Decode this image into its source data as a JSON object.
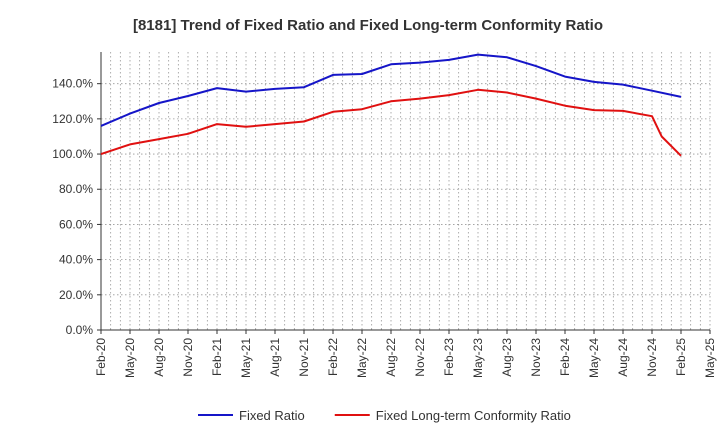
{
  "chart_data": {
    "type": "line",
    "title": "[8181]  Trend of Fixed Ratio and Fixed Long-term Conformity Ratio",
    "xlabel": "",
    "ylabel": "",
    "x": [
      "Feb-20",
      "May-20",
      "Aug-20",
      "Nov-20",
      "Feb-21",
      "May-21",
      "Aug-21",
      "Nov-21",
      "Feb-22",
      "May-22",
      "Aug-22",
      "Nov-22",
      "Feb-23",
      "May-23",
      "Aug-23",
      "Nov-23",
      "Feb-24",
      "May-24",
      "Aug-24",
      "Nov-24",
      "Feb-25",
      "May-25"
    ],
    "x_tick_labels": [
      "Feb-20",
      "May-20",
      "Aug-20",
      "Nov-20",
      "Feb-21",
      "May-21",
      "Aug-21",
      "Nov-21",
      "Feb-22",
      "May-22",
      "Aug-22",
      "Nov-22",
      "Feb-23",
      "May-23",
      "Aug-23",
      "Nov-23",
      "Feb-24",
      "May-24",
      "Aug-24",
      "Nov-24",
      "Feb-25",
      "May-25"
    ],
    "y_tick_labels": [
      "0.0%",
      "20.0%",
      "40.0%",
      "60.0%",
      "80.0%",
      "100.0%",
      "120.0%",
      "140.0%"
    ],
    "y_ticks": [
      0,
      20,
      40,
      60,
      80,
      100,
      120,
      140
    ],
    "ylim": [
      0,
      158
    ],
    "grid": true,
    "legend_position": "bottom",
    "series": [
      {
        "name": "Fixed Ratio",
        "color": "#1515c8",
        "points": [
          {
            "x": "Feb-20",
            "y": 116
          },
          {
            "x": "May-20",
            "y": 123
          },
          {
            "x": "Aug-20",
            "y": 129
          },
          {
            "x": "Nov-20",
            "y": 133
          },
          {
            "x": "Feb-21",
            "y": 137.5
          },
          {
            "x": "May-21",
            "y": 135.5
          },
          {
            "x": "Aug-21",
            "y": 137
          },
          {
            "x": "Nov-21",
            "y": 138
          },
          {
            "x": "Feb-22",
            "y": 145
          },
          {
            "x": "May-22",
            "y": 145.5
          },
          {
            "x": "Aug-22",
            "y": 151
          },
          {
            "x": "Nov-22",
            "y": 152
          },
          {
            "x": "Feb-23",
            "y": 153.5
          },
          {
            "x": "May-23",
            "y": 156.5
          },
          {
            "x": "Aug-23",
            "y": 155
          },
          {
            "x": "Nov-23",
            "y": 150
          },
          {
            "x": "Feb-24",
            "y": 144
          },
          {
            "x": "May-24",
            "y": 141
          },
          {
            "x": "Aug-24",
            "y": 139.5
          },
          {
            "x": "Nov-24",
            "y": 136
          },
          {
            "x": "Feb-25",
            "y": 132.5
          }
        ]
      },
      {
        "name": "Fixed Long-term Conformity Ratio",
        "color": "#e01010",
        "points": [
          {
            "x": "Feb-20",
            "y": 100
          },
          {
            "x": "May-20",
            "y": 105.5
          },
          {
            "x": "Aug-20",
            "y": 108.5
          },
          {
            "x": "Nov-20",
            "y": 111.5
          },
          {
            "x": "Feb-21",
            "y": 117
          },
          {
            "x": "May-21",
            "y": 115.5
          },
          {
            "x": "Aug-21",
            "y": 117
          },
          {
            "x": "Nov-21",
            "y": 118.5
          },
          {
            "x": "Feb-22",
            "y": 124
          },
          {
            "x": "May-22",
            "y": 125.5
          },
          {
            "x": "Aug-22",
            "y": 130
          },
          {
            "x": "Nov-22",
            "y": 131.5
          },
          {
            "x": "Feb-23",
            "y": 133.5
          },
          {
            "x": "May-23",
            "y": 136.5
          },
          {
            "x": "Aug-23",
            "y": 135
          },
          {
            "x": "Nov-23",
            "y": 131.5
          },
          {
            "x": "Feb-24",
            "y": 127.5
          },
          {
            "x": "May-24",
            "y": 125
          },
          {
            "x": "Aug-24",
            "y": 124.5
          },
          {
            "x": "Nov-24",
            "y": 121.5
          },
          {
            "x": "Dec-24",
            "y": 110
          },
          {
            "x": "Feb-25",
            "y": 99
          }
        ]
      }
    ]
  }
}
